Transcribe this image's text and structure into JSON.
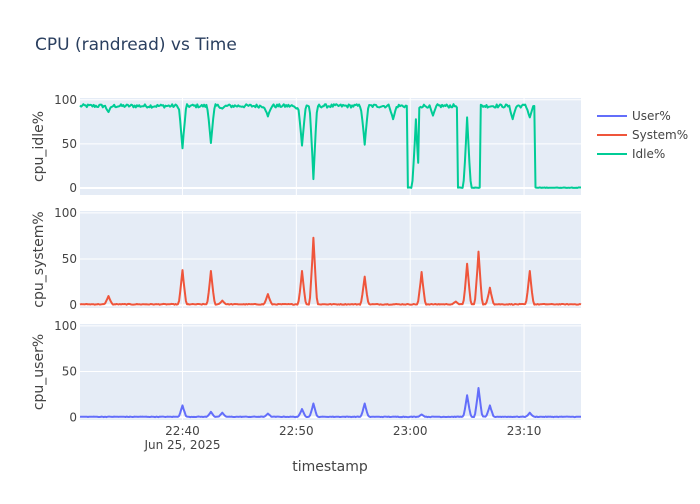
{
  "chart_data": {
    "type": "line",
    "title": "CPU (randread) vs Time",
    "xlabel": "timestamp",
    "x_range_minutes": [
      "22:31",
      "23:15"
    ],
    "x_ticks": [
      {
        "label": "22:40",
        "sublabel": "Jun 25, 2025",
        "minute": 40
      },
      {
        "label": "22:50",
        "sublabel": "",
        "minute": 50
      },
      {
        "label": "23:00",
        "sublabel": "",
        "minute": 60
      },
      {
        "label": "23:10",
        "sublabel": "",
        "minute": 70
      }
    ],
    "legend": [
      {
        "name": "User%",
        "color": "#636efa"
      },
      {
        "name": "System%",
        "color": "#ef553b"
      },
      {
        "name": "Idle%",
        "color": "#00cc96"
      }
    ],
    "panels": [
      {
        "ylabel": "cpu_idle%",
        "ylim": [
          -8,
          102
        ],
        "yticks": [
          0,
          50,
          100
        ],
        "series_name": "Idle%",
        "color": "#00cc96",
        "baseline": 93,
        "baseline_noise": 2,
        "events": [
          {
            "t": 33.5,
            "v": 86
          },
          {
            "t": 40.0,
            "v": 45
          },
          {
            "t": 42.5,
            "v": 51
          },
          {
            "t": 43.5,
            "v": 90
          },
          {
            "t": 47.5,
            "v": 81
          },
          {
            "t": 50.0,
            "v": 90
          },
          {
            "t": 50.5,
            "v": 48
          },
          {
            "t": 51.5,
            "v": 10
          },
          {
            "t": 56.0,
            "v": 49
          },
          {
            "t": 58.5,
            "v": 78
          },
          {
            "t": 60.5,
            "v": 78
          },
          {
            "t": 62.0,
            "v": 82
          },
          {
            "t": 65.0,
            "v": 80
          },
          {
            "t": 69.0,
            "v": 78
          },
          {
            "t": 70.5,
            "v": 80
          }
        ],
        "zero_ranges": [
          [
            59.8,
            60.8
          ],
          [
            64.2,
            66.2
          ],
          [
            71.0,
            75.0
          ]
        ]
      },
      {
        "ylabel": "cpu_system%",
        "ylim": [
          -3,
          102
        ],
        "yticks": [
          0,
          50,
          100
        ],
        "series_name": "System%",
        "color": "#ef553b",
        "baseline": 1,
        "baseline_noise": 0.4,
        "events": [
          {
            "t": 33.5,
            "v": 10
          },
          {
            "t": 40.0,
            "v": 38
          },
          {
            "t": 42.5,
            "v": 37
          },
          {
            "t": 43.5,
            "v": 5
          },
          {
            "t": 47.5,
            "v": 12
          },
          {
            "t": 50.5,
            "v": 37
          },
          {
            "t": 51.5,
            "v": 73
          },
          {
            "t": 56.0,
            "v": 31
          },
          {
            "t": 61.0,
            "v": 36
          },
          {
            "t": 64.0,
            "v": 4
          },
          {
            "t": 65.0,
            "v": 45
          },
          {
            "t": 66.0,
            "v": 58
          },
          {
            "t": 67.0,
            "v": 19
          },
          {
            "t": 70.5,
            "v": 37
          }
        ],
        "zero_ranges": []
      },
      {
        "ylabel": "cpu_user%",
        "ylim": [
          -3,
          102
        ],
        "yticks": [
          0,
          50,
          100
        ],
        "series_name": "User%",
        "color": "#636efa",
        "baseline": 0.5,
        "baseline_noise": 0.3,
        "events": [
          {
            "t": 40.0,
            "v": 13
          },
          {
            "t": 42.5,
            "v": 6
          },
          {
            "t": 43.5,
            "v": 5
          },
          {
            "t": 47.5,
            "v": 4
          },
          {
            "t": 50.5,
            "v": 9
          },
          {
            "t": 51.5,
            "v": 15
          },
          {
            "t": 56.0,
            "v": 15
          },
          {
            "t": 61.0,
            "v": 3
          },
          {
            "t": 65.0,
            "v": 24
          },
          {
            "t": 66.0,
            "v": 32
          },
          {
            "t": 67.0,
            "v": 13
          },
          {
            "t": 70.5,
            "v": 5
          }
        ],
        "zero_ranges": []
      }
    ]
  }
}
